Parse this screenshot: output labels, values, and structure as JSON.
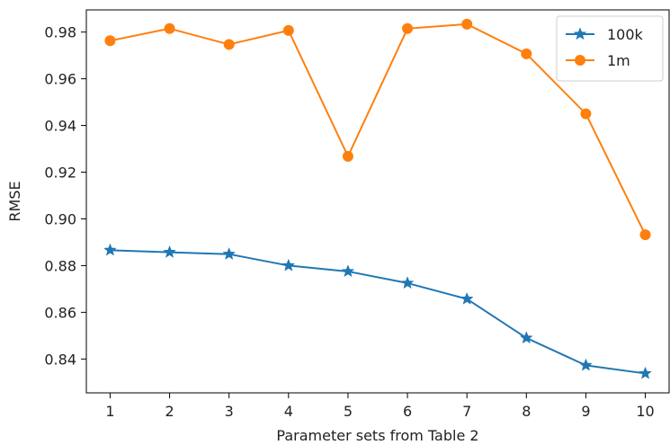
{
  "chart_data": {
    "type": "line",
    "title": "",
    "xlabel": "Parameter sets from Table 2",
    "ylabel": "RMSE",
    "x": [
      1,
      2,
      3,
      4,
      5,
      6,
      7,
      8,
      9,
      10
    ],
    "xticks": [
      "1",
      "2",
      "3",
      "4",
      "5",
      "6",
      "7",
      "8",
      "9",
      "10"
    ],
    "xlim": [
      0.6,
      10.4
    ],
    "ylim": [
      0.8255,
      0.9895
    ],
    "yticks": [
      "0.84",
      "0.86",
      "0.88",
      "0.90",
      "0.92",
      "0.94",
      "0.96",
      "0.98"
    ],
    "ytick_values": [
      0.84,
      0.86,
      0.88,
      0.9,
      0.92,
      0.94,
      0.96,
      0.98
    ],
    "grid": false,
    "legend_position": "top-right",
    "series": [
      {
        "name": "100k",
        "color": "#1f77b4",
        "marker": "star",
        "values": [
          0.8866,
          0.8857,
          0.8849,
          0.88,
          0.8775,
          0.8725,
          0.8657,
          0.849,
          0.8373,
          0.8338
        ]
      },
      {
        "name": "1m",
        "color": "#ff7f0e",
        "marker": "circle",
        "values": [
          0.9763,
          0.9815,
          0.9747,
          0.9807,
          0.9268,
          0.9815,
          0.9834,
          0.9707,
          0.945,
          0.8932
        ]
      }
    ]
  }
}
